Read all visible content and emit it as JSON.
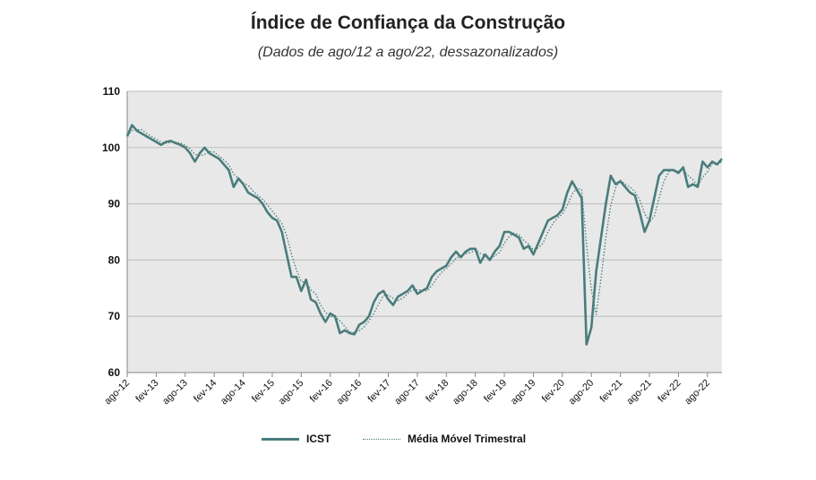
{
  "title": "Índice de Confiança da Construção",
  "subtitle": "(Dados de ago/12 a ago/22, dessazonalizados)",
  "colors": {
    "icst": "#4a7c7c",
    "mm3": "#4a7c7c",
    "plot_bg": "#e8e8e8",
    "grid": "#bdbdbd",
    "axis": "#888888"
  },
  "chart_data": {
    "type": "line",
    "title": "Índice de Confiança da Construção",
    "subtitle": "(Dados de ago/12 a ago/22, dessazonalizados)",
    "ylim": [
      60,
      110
    ],
    "yticks": [
      "60",
      "70",
      "80",
      "90",
      "100",
      "110"
    ],
    "grid": true,
    "legend": "bottom",
    "x_tick_labels": [
      "ago-12",
      "fev-13",
      "ago-13",
      "fev-14",
      "ago-14",
      "fev-15",
      "ago-15",
      "fev-16",
      "ago-16",
      "fev-17",
      "ago-17",
      "fev-18",
      "ago-18",
      "fev-19",
      "ago-19",
      "fev-20",
      "ago-20",
      "fev-21",
      "ago-21",
      "fev-22",
      "ago-22"
    ],
    "series": [
      {
        "name": "ICST",
        "style": "solid",
        "values": [
          102.0,
          104.0,
          103.0,
          102.5,
          102.0,
          101.5,
          101.0,
          100.5,
          101.0,
          101.2,
          100.8,
          100.5,
          100.0,
          99.0,
          97.5,
          99.0,
          100.0,
          99.0,
          98.5,
          98.0,
          97.0,
          96.0,
          93.0,
          94.5,
          93.5,
          92.0,
          91.5,
          91.0,
          90.0,
          88.5,
          87.5,
          87.0,
          85.0,
          81.0,
          77.0,
          77.0,
          74.5,
          76.5,
          73.0,
          72.5,
          70.5,
          69.0,
          70.5,
          70.0,
          67.0,
          67.5,
          67.0,
          66.8,
          68.5,
          69.0,
          70.0,
          72.5,
          74.0,
          74.5,
          73.0,
          72.0,
          73.5,
          74.0,
          74.5,
          75.5,
          74.0,
          74.5,
          75.0,
          77.0,
          78.0,
          78.5,
          79.0,
          80.5,
          81.5,
          80.5,
          81.5,
          82.0,
          82.0,
          79.5,
          81.0,
          80.0,
          81.5,
          82.5,
          85.0,
          85.0,
          84.5,
          84.0,
          82.0,
          82.5,
          81.0,
          83.0,
          85.0,
          87.0,
          87.5,
          88.0,
          89.0,
          92.0,
          94.0,
          92.5,
          91.0,
          65.0,
          68.0,
          78.0,
          84.0,
          90.0,
          95.0,
          93.5,
          94.0,
          93.0,
          92.0,
          91.5,
          88.5,
          85.0,
          87.0,
          91.0,
          95.0,
          96.0,
          96.0,
          96.0,
          95.5,
          96.5,
          93.0,
          93.5,
          93.0,
          97.5,
          96.5,
          97.5,
          97.0,
          98.0
        ]
      },
      {
        "name": "Média Móvel Trimestral",
        "style": "dotted",
        "values": [
          102.2,
          103.0,
          103.2,
          103.2,
          102.5,
          102.0,
          101.5,
          101.0,
          100.8,
          100.9,
          101.0,
          100.8,
          100.4,
          99.8,
          98.8,
          98.5,
          98.8,
          99.3,
          99.2,
          98.5,
          97.8,
          97.0,
          95.3,
          94.5,
          93.7,
          93.3,
          92.3,
          91.5,
          90.8,
          89.8,
          88.7,
          87.7,
          86.5,
          84.3,
          81.0,
          78.3,
          76.2,
          76.0,
          74.7,
          74.0,
          72.0,
          70.7,
          70.0,
          69.8,
          69.2,
          68.2,
          67.2,
          67.1,
          67.4,
          68.1,
          69.2,
          70.5,
          72.2,
          73.7,
          73.8,
          73.2,
          72.8,
          73.2,
          74.0,
          74.7,
          74.7,
          74.7,
          74.5,
          75.5,
          76.7,
          77.8,
          78.5,
          79.3,
          80.3,
          80.8,
          81.2,
          81.3,
          81.8,
          81.2,
          80.8,
          80.2,
          80.8,
          81.3,
          83.0,
          84.2,
          84.8,
          84.5,
          83.5,
          82.8,
          81.8,
          82.2,
          83.0,
          85.0,
          86.5,
          87.5,
          88.2,
          89.7,
          91.7,
          92.8,
          92.5,
          82.8,
          74.7,
          70.3,
          76.7,
          84.0,
          89.7,
          92.8,
          94.2,
          93.5,
          93.0,
          92.2,
          90.7,
          88.3,
          86.8,
          87.7,
          91.0,
          94.0,
          95.7,
          96.0,
          95.8,
          96.0,
          95.0,
          94.3,
          93.2,
          94.7,
          95.7,
          97.2,
          97.0,
          97.5
        ]
      }
    ]
  },
  "legend": {
    "items": [
      "ICST",
      "Média Móvel Trimestral"
    ]
  }
}
